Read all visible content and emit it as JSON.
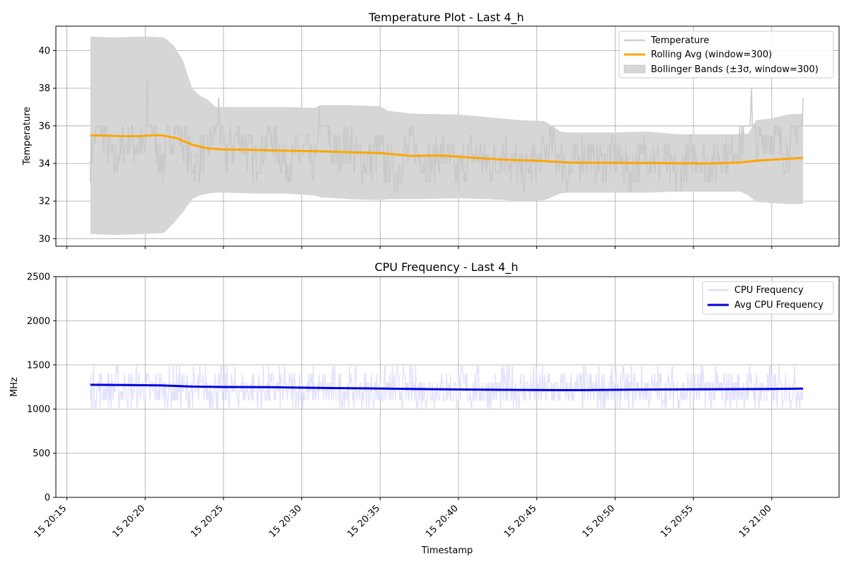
{
  "xlabel": "Timestamp",
  "x_ticks": [
    "15 20:15",
    "15 20:20",
    "15 20:25",
    "15 20:30",
    "15 20:35",
    "15 20:40",
    "15 20:45",
    "15 20:50",
    "15 20:55",
    "15 21:00"
  ],
  "chart_data": [
    {
      "type": "line",
      "title": "Temperature Plot - Last 4_h",
      "ylabel": "Temperature",
      "xlim": [
        "20:14.3",
        "21:04.3"
      ],
      "ylim": [
        29.6,
        41.3
      ],
      "y_ticks": [
        30,
        32,
        34,
        36,
        38,
        40
      ],
      "grid": true,
      "legend_position": "top-right",
      "legend": [
        {
          "label": "Temperature",
          "kind": "line",
          "color": "#c8c8c8"
        },
        {
          "label": "Rolling Avg (window=300)",
          "kind": "line",
          "color": "#ffa500"
        },
        {
          "label": "Bollinger Bands (±3σ, window=300)",
          "kind": "band",
          "color": "#d6d6d6"
        }
      ],
      "series": [
        {
          "name": "Temperature",
          "color": "#c8c8c8",
          "x": [
            "20:16.5",
            "20:17",
            "20:18",
            "20:19",
            "20:20",
            "20:20.1",
            "20:21",
            "20:22",
            "20:23",
            "20:24",
            "20:24.7",
            "20:25",
            "20:26",
            "20:27",
            "20:28",
            "20:29",
            "20:30",
            "20:31",
            "20:31.1",
            "20:32",
            "20:33",
            "20:34",
            "20:35",
            "20:36",
            "20:37",
            "20:38",
            "20:39",
            "20:40",
            "20:41",
            "20:42",
            "20:43",
            "20:44",
            "20:45",
            "20:46",
            "20:47",
            "20:48",
            "20:49",
            "20:50",
            "20:51",
            "20:52",
            "20:53",
            "20:54",
            "20:55",
            "20:56",
            "20:57",
            "20:58",
            "20:58.7",
            "20:59",
            "21:00",
            "21:01",
            "21:02"
          ],
          "values": [
            34.0,
            36.5,
            34.0,
            35.5,
            34.5,
            37.5,
            34.0,
            36.0,
            34.0,
            34.5,
            37.0,
            34.5,
            35.5,
            34.0,
            35.5,
            34.0,
            34.5,
            34.0,
            37.5,
            34.5,
            35.0,
            34.0,
            34.5,
            33.5,
            35.0,
            34.0,
            34.5,
            33.5,
            34.5,
            34.0,
            34.5,
            33.5,
            34.0,
            35.0,
            33.5,
            34.5,
            34.0,
            34.5,
            33.5,
            34.5,
            34.0,
            33.5,
            34.5,
            34.0,
            34.5,
            35.0,
            38.0,
            35.0,
            35.5,
            34.5,
            37.0
          ]
        },
        {
          "name": "Rolling Avg (window=300)",
          "color": "#ffa500",
          "x": [
            "20:16.5",
            "20:17.5",
            "20:18.5",
            "20:19.5",
            "20:20.5",
            "20:21",
            "20:22",
            "20:23",
            "20:24",
            "20:25",
            "20:27",
            "20:29",
            "20:31",
            "20:33",
            "20:35",
            "20:37",
            "20:39",
            "20:41",
            "20:43",
            "20:45",
            "20:47",
            "20:50",
            "20:53",
            "20:56",
            "20:58",
            "20:59",
            "21:00",
            "21:02"
          ],
          "values": [
            35.5,
            35.48,
            35.45,
            35.45,
            35.5,
            35.5,
            35.35,
            35.0,
            34.8,
            34.75,
            34.72,
            34.68,
            34.65,
            34.6,
            34.55,
            34.4,
            34.42,
            34.3,
            34.2,
            34.15,
            34.05,
            34.03,
            34.02,
            34.0,
            34.05,
            34.15,
            34.2,
            34.3
          ]
        }
      ],
      "band": {
        "name": "Bollinger Bands (±3σ, window=300)",
        "color": "#d6d6d6",
        "x": [
          "20:16.5",
          "20:18",
          "20:20",
          "20:21.2",
          "20:21.8",
          "20:22.4",
          "20:23",
          "20:23.5",
          "20:24",
          "20:24.5",
          "20:25",
          "20:27",
          "20:29",
          "20:30.8",
          "20:31.2",
          "20:33",
          "20:35",
          "20:35.5",
          "20:37",
          "20:40",
          "20:42",
          "20:44",
          "20:45.5",
          "20:46.5",
          "20:47",
          "20:50",
          "20:52",
          "20:54",
          "20:57",
          "20:58",
          "20:58.5",
          "20:59",
          "21:00",
          "21:01",
          "21:02"
        ],
        "upper": [
          40.75,
          40.7,
          40.75,
          40.7,
          40.3,
          39.5,
          38.0,
          37.6,
          37.4,
          37.0,
          37.0,
          37.0,
          37.0,
          36.95,
          37.1,
          37.1,
          37.05,
          36.8,
          36.65,
          36.6,
          36.45,
          36.3,
          36.25,
          35.7,
          35.65,
          35.65,
          35.7,
          35.55,
          35.55,
          35.55,
          35.6,
          36.3,
          36.4,
          36.6,
          36.65
        ],
        "lower": [
          30.25,
          30.2,
          30.25,
          30.3,
          30.8,
          31.4,
          32.1,
          32.3,
          32.4,
          32.45,
          32.45,
          32.4,
          32.4,
          32.3,
          32.2,
          32.1,
          32.05,
          32.1,
          32.1,
          32.15,
          32.1,
          32.0,
          32.05,
          32.4,
          32.45,
          32.45,
          32.45,
          32.5,
          32.5,
          32.5,
          32.3,
          31.95,
          31.9,
          31.85,
          31.85
        ]
      }
    },
    {
      "type": "line",
      "title": "CPU Frequency - Last 4_h",
      "ylabel": "MHz",
      "xlabel": "Timestamp",
      "xlim": [
        "20:14.3",
        "21:04.3"
      ],
      "ylim": [
        0,
        2500
      ],
      "y_ticks": [
        0,
        500,
        1000,
        1500,
        2000,
        2500
      ],
      "grid": true,
      "legend_position": "top-right",
      "legend": [
        {
          "label": "CPU Frequency",
          "kind": "line",
          "color": "#e2e2fb"
        },
        {
          "label": "Avg CPU Frequency",
          "kind": "line",
          "color": "#0000dd"
        }
      ],
      "series": [
        {
          "name": "CPU Frequency",
          "color": "#e2e2fb",
          "x_range": [
            "20:16.5",
            "21:02"
          ],
          "min": 1000,
          "max": 1500,
          "typical": 1250
        },
        {
          "name": "Avg CPU Frequency",
          "color": "#0000dd",
          "x": [
            "20:16.5",
            "20:19",
            "20:21",
            "20:23",
            "20:25",
            "20:28",
            "20:31",
            "20:34",
            "20:37",
            "20:40",
            "20:43",
            "20:46",
            "20:48",
            "20:51",
            "20:54",
            "20:57",
            "21:00",
            "21:02"
          ],
          "values": [
            1275,
            1272,
            1268,
            1255,
            1250,
            1248,
            1240,
            1235,
            1228,
            1222,
            1218,
            1215,
            1215,
            1220,
            1223,
            1225,
            1228,
            1232
          ]
        }
      ]
    }
  ]
}
